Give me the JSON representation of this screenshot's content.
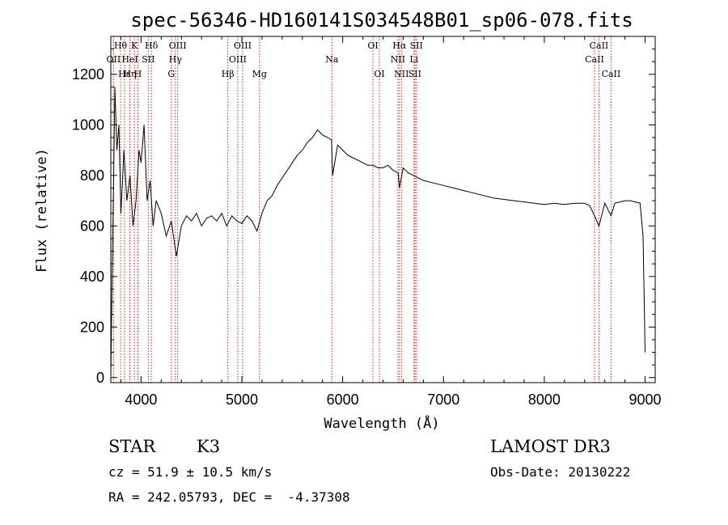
{
  "chart_data": {
    "type": "line",
    "title": "spec-56346-HD160141S034548B01_sp06-078.fits",
    "xlabel": "Wavelength (Å)",
    "ylabel": "Flux (relative)",
    "xlim": [
      3700,
      9100
    ],
    "ylim": [
      -20,
      1350
    ],
    "xticks": [
      4000,
      5000,
      6000,
      7000,
      8000,
      9000
    ],
    "yticks": [
      0,
      200,
      400,
      600,
      800,
      1000,
      1200
    ],
    "grid": false,
    "series": [
      {
        "x": [
          3700,
          3710,
          3725,
          3740,
          3760,
          3780,
          3800,
          3830,
          3860,
          3890,
          3920,
          3950,
          3980,
          4000,
          4030,
          4060,
          4090,
          4120,
          4150,
          4200,
          4250,
          4300,
          4350,
          4400,
          4450,
          4500,
          4550,
          4600,
          4650,
          4700,
          4750,
          4800,
          4850,
          4900,
          4950,
          5000,
          5050,
          5100,
          5150,
          5200,
          5250,
          5300,
          5350,
          5400,
          5450,
          5500,
          5550,
          5600,
          5650,
          5700,
          5750,
          5800,
          5850,
          5890,
          5900,
          5950,
          6000,
          6050,
          6100,
          6150,
          6200,
          6250,
          6300,
          6350,
          6400,
          6450,
          6500,
          6550,
          6563,
          6600,
          6650,
          6700,
          6750,
          6800,
          6900,
          7000,
          7100,
          7200,
          7300,
          7400,
          7500,
          7600,
          7700,
          7800,
          7900,
          8000,
          8100,
          8200,
          8300,
          8400,
          8450,
          8498,
          8542,
          8600,
          8662,
          8700,
          8750,
          8800,
          8850,
          8900,
          8950,
          8980,
          9000
        ],
        "y": [
          0,
          300,
          700,
          1150,
          900,
          1000,
          650,
          900,
          700,
          800,
          600,
          700,
          900,
          850,
          1000,
          700,
          780,
          600,
          700,
          650,
          560,
          620,
          480,
          600,
          640,
          620,
          650,
          600,
          630,
          640,
          620,
          650,
          600,
          640,
          620,
          610,
          640,
          620,
          580,
          650,
          700,
          720,
          760,
          790,
          820,
          850,
          880,
          900,
          930,
          950,
          980,
          960,
          950,
          940,
          800,
          920,
          900,
          880,
          870,
          860,
          850,
          840,
          840,
          830,
          830,
          840,
          820,
          810,
          750,
          830,
          810,
          800,
          790,
          780,
          770,
          760,
          750,
          740,
          730,
          720,
          710,
          705,
          700,
          695,
          690,
          685,
          690,
          685,
          690,
          690,
          680,
          640,
          600,
          690,
          640,
          690,
          695,
          700,
          700,
          695,
          690,
          560,
          100
        ]
      }
    ],
    "spectral_lines": [
      {
        "name": "Hθ",
        "wavelength": 3797,
        "row": 1
      },
      {
        "name": "K",
        "wavelength": 3934,
        "row": 1
      },
      {
        "name": "Hδ",
        "wavelength": 4102,
        "row": 1
      },
      {
        "name": "OIII",
        "wavelength": 4363,
        "row": 1
      },
      {
        "name": "OIII",
        "wavelength": 5007,
        "row": 1
      },
      {
        "name": "OI",
        "wavelength": 6300,
        "row": 1
      },
      {
        "name": "Hα",
        "wavelength": 6563,
        "row": 1
      },
      {
        "name": "SII",
        "wavelength": 6731,
        "row": 1
      },
      {
        "name": "CaII",
        "wavelength": 8542,
        "row": 1
      },
      {
        "name": "OII",
        "wavelength": 3727,
        "row": 2
      },
      {
        "name": "HeI",
        "wavelength": 3889,
        "row": 2
      },
      {
        "name": "SII",
        "wavelength": 4072,
        "row": 2
      },
      {
        "name": "Hγ",
        "wavelength": 4340,
        "row": 2
      },
      {
        "name": "OIII",
        "wavelength": 4959,
        "row": 2
      },
      {
        "name": "Na",
        "wavelength": 5893,
        "row": 2
      },
      {
        "name": "NII",
        "wavelength": 6548,
        "row": 2
      },
      {
        "name": "Li",
        "wavelength": 6708,
        "row": 2
      },
      {
        "name": "CaII",
        "wavelength": 8498,
        "row": 2
      },
      {
        "name": "Hε",
        "wavelength": 3835,
        "row": 3
      },
      {
        "name": "Hη",
        "wavelength": 3889,
        "row": 3
      },
      {
        "name": "H",
        "wavelength": 3968,
        "row": 3
      },
      {
        "name": "G",
        "wavelength": 4300,
        "row": 3
      },
      {
        "name": "Hβ",
        "wavelength": 4861,
        "row": 3
      },
      {
        "name": "Mg",
        "wavelength": 5175,
        "row": 3
      },
      {
        "name": "OI",
        "wavelength": 6364,
        "row": 3
      },
      {
        "name": "NII",
        "wavelength": 6583,
        "row": 3
      },
      {
        "name": "SII",
        "wavelength": 6716,
        "row": 3
      },
      {
        "name": "CaII",
        "wavelength": 8662,
        "row": 3
      }
    ],
    "line_marker_color": "#cc2222"
  },
  "info": {
    "object_class": "STAR",
    "subclass": "K3",
    "survey": "LAMOST DR3",
    "redshift": "cz = 51.9 ± 10.5 km/s",
    "obs_date": "Obs-Date: 20130222",
    "coords": "RA = 242.05793, DEC =  -4.37308"
  }
}
